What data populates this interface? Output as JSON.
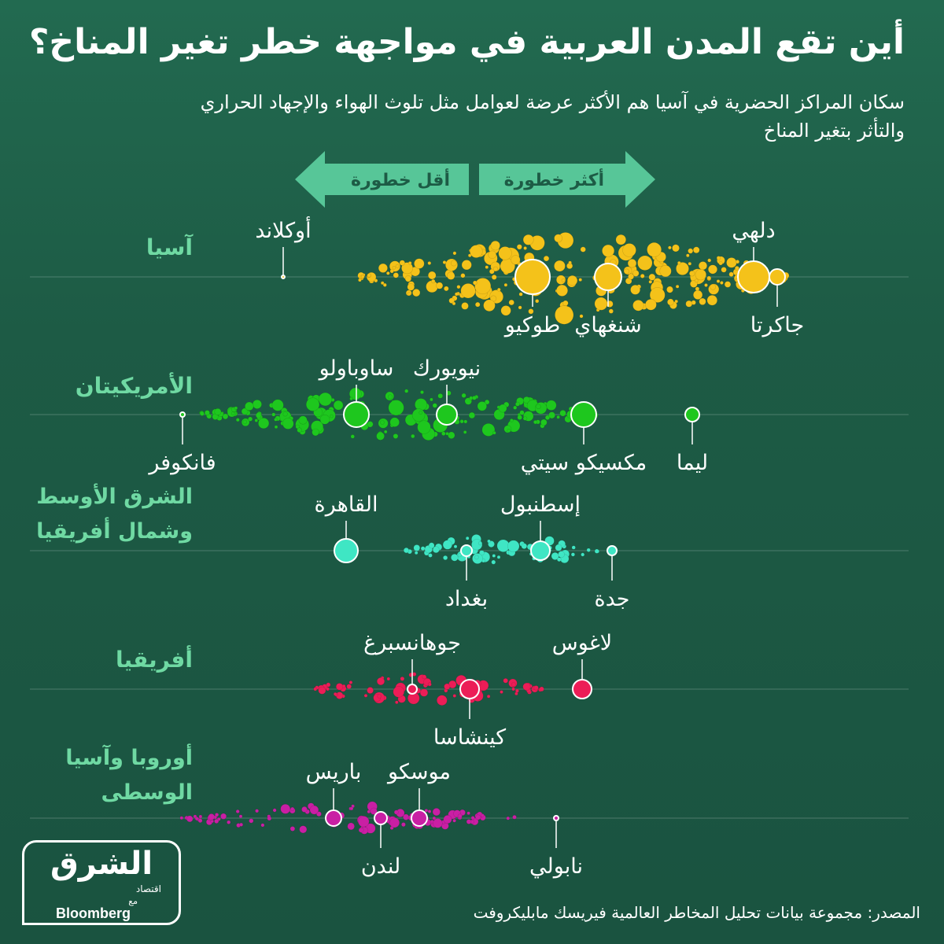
{
  "title": "أين تقع المدن العربية في مواجهة خطر تغير المناخ؟",
  "subtitle": "سكان المراكز الحضرية في آسيا هم الأكثر عرضة لعوامل مثل تلوث الهواء والإجهاد الحراري والتأثر بتغير المناخ",
  "arrows": {
    "more_risk": "أكثر خطورة",
    "less_risk": "أقل خطورة"
  },
  "source": "المصدر: مجموعة بيانات تحليل المخاطر العالمية فيريسك مابليكروفت",
  "logo": {
    "main": "الشرق",
    "sub": "اقتصاد",
    "with": "مع",
    "brand": "Bloomberg"
  },
  "colors": {
    "background": "#1d5b45",
    "label_green": "#6fd9a3",
    "arrow": "#57c698",
    "asia": "#f4c21a",
    "americas": "#1ec71e",
    "mena": "#3fe6c4",
    "africa": "#ec1d57",
    "europe": "#c91fa4"
  },
  "chart_data": {
    "type": "scatter",
    "x_direction_note": "",
    "regions": [
      {
        "name": "آسيا",
        "color_key": "asia",
        "cities": [
          {
            "name": "أوكلاند",
            "risk": 360,
            "label_side": "above"
          },
          {
            "name": "دلهي",
            "risk": 958,
            "label_side": "above"
          },
          {
            "name": "جاكرتا",
            "risk": 988,
            "label_side": "below"
          },
          {
            "name": "طوكيو",
            "risk": 677,
            "label_side": "below"
          },
          {
            "name": "شنغهاي",
            "risk": 773,
            "label_side": "below"
          }
        ]
      },
      {
        "name": "الأمريكيتان",
        "color_key": "americas",
        "cities": [
          {
            "name": "فانكوفر",
            "risk": 232,
            "label_side": "below"
          },
          {
            "name": "ساوباولو",
            "risk": 453,
            "label_side": "above"
          },
          {
            "name": "نيويورك",
            "risk": 568,
            "label_side": "above"
          },
          {
            "name": "مكسيكو سيتي",
            "risk": 742,
            "label_side": "below"
          },
          {
            "name": "ليما",
            "risk": 880,
            "label_side": "below"
          }
        ]
      },
      {
        "name": "الشرق الأوسط وشمال أفريقيا",
        "name_lines": [
          "الشرق الأوسط",
          "وشمال أفريقيا"
        ],
        "color_key": "mena",
        "cities": [
          {
            "name": "القاهرة",
            "risk": 440,
            "label_side": "above"
          },
          {
            "name": "بغداد",
            "risk": 593,
            "label_side": "below"
          },
          {
            "name": "إسطنبول",
            "risk": 687,
            "label_side": "above"
          },
          {
            "name": "جدة",
            "risk": 778,
            "label_side": "below"
          }
        ]
      },
      {
        "name": "أفريقيا",
        "color_key": "africa",
        "cities": [
          {
            "name": "جوهانسبرغ",
            "risk": 524,
            "label_side": "above"
          },
          {
            "name": "كينشاسا",
            "risk": 597,
            "label_side": "below"
          },
          {
            "name": "لاغوس",
            "risk": 740,
            "label_side": "above"
          }
        ]
      },
      {
        "name": "أوروبا وآسيا الوسطى",
        "name_lines": [
          "أوروبا وآسيا",
          "الوسطى"
        ],
        "color_key": "europe",
        "cities": [
          {
            "name": "باريس",
            "risk": 424,
            "label_side": "above"
          },
          {
            "name": "لندن",
            "risk": 484,
            "label_side": "below"
          },
          {
            "name": "موسكو",
            "risk": 533,
            "label_side": "above"
          },
          {
            "name": "نابولي",
            "risk": 707,
            "label_side": "below"
          }
        ]
      }
    ]
  }
}
